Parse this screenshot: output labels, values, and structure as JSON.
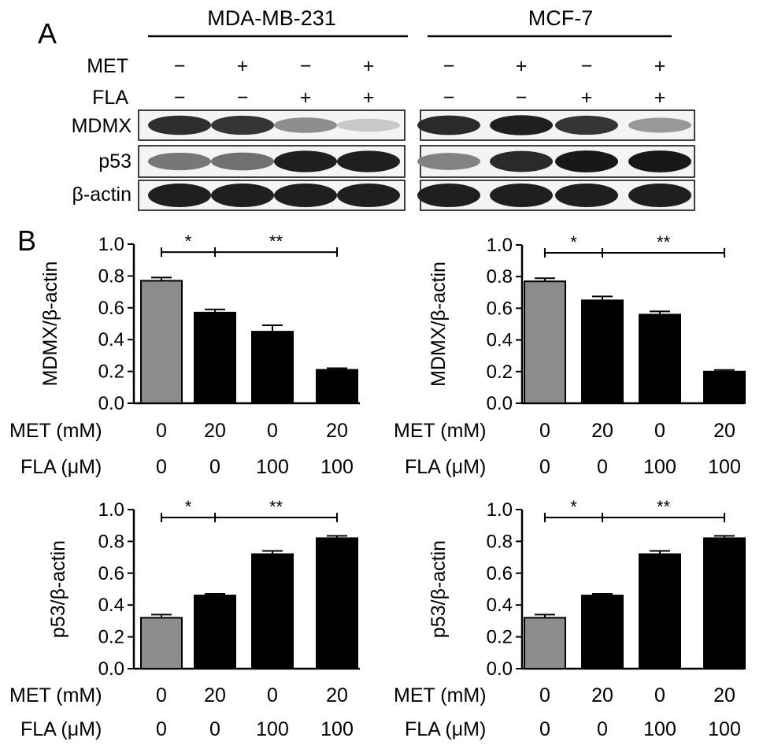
{
  "panel_a": {
    "letter": "A",
    "groups": [
      {
        "name": "MDA-MB-231",
        "met": [
          "−",
          "+",
          "−",
          "+"
        ],
        "fla": [
          "−",
          "−",
          "+",
          "+"
        ],
        "bands": {
          "MDMX": [
            0.88,
            0.85,
            0.45,
            0.18
          ],
          "p53": [
            0.55,
            0.58,
            0.95,
            0.95
          ],
          "beta_actin": [
            0.95,
            0.95,
            0.95,
            0.95
          ]
        }
      },
      {
        "name": "MCF-7",
        "met": [
          "−",
          "+",
          "−",
          "+"
        ],
        "fla": [
          "−",
          "−",
          "+",
          "+"
        ],
        "bands": {
          "MDMX": [
            0.9,
            0.95,
            0.85,
            0.4
          ],
          "p53": [
            0.5,
            0.9,
            0.98,
            0.98
          ],
          "beta_actin": [
            0.95,
            0.95,
            0.95,
            0.95
          ]
        }
      }
    ],
    "row_labels": {
      "met": "MET",
      "fla": "FLA"
    },
    "blot_labels": [
      "MDMX",
      "p53",
      "β-actin"
    ]
  },
  "panel_b": {
    "letter": "B"
  },
  "chart_data": [
    {
      "type": "bar",
      "ylabel": "MDMX/β-actin",
      "ylim": [
        0,
        1.0
      ],
      "yticks": [
        "0.0",
        "0.2",
        "0.4",
        "0.6",
        "0.8",
        "1.0"
      ],
      "conditions": {
        "row1_label": "MET (mM)",
        "row1": [
          "0",
          "20",
          "0",
          "20"
        ],
        "row2_label": "FLA (μM)",
        "row2": [
          "0",
          "0",
          "100",
          "100"
        ]
      },
      "values": [
        0.77,
        0.57,
        0.45,
        0.21
      ],
      "errors": [
        0.02,
        0.02,
        0.04,
        0.01
      ],
      "colors": [
        "#8c8c8c",
        "#000000",
        "#000000",
        "#000000"
      ],
      "significance": [
        {
          "from": 0,
          "to": 1,
          "label": "*"
        },
        {
          "from": 1,
          "to": 3,
          "label": "**"
        }
      ]
    },
    {
      "type": "bar",
      "ylabel": "MDMX/β-actin",
      "ylim": [
        0,
        1.0
      ],
      "yticks": [
        "0.0",
        "0.2",
        "0.4",
        "0.6",
        "0.8",
        "1.0"
      ],
      "conditions": {
        "row1_label": "MET (mM)",
        "row1": [
          "0",
          "20",
          "0",
          "20"
        ],
        "row2_label": "FLA (μM)",
        "row2": [
          "0",
          "0",
          "100",
          "100"
        ]
      },
      "values": [
        0.77,
        0.65,
        0.56,
        0.2
      ],
      "errors": [
        0.02,
        0.025,
        0.02,
        0.01
      ],
      "colors": [
        "#8c8c8c",
        "#000000",
        "#000000",
        "#000000"
      ],
      "significance": [
        {
          "from": 0,
          "to": 1,
          "label": "*"
        },
        {
          "from": 1,
          "to": 3,
          "label": "**"
        }
      ]
    },
    {
      "type": "bar",
      "ylabel": "p53/β-actin",
      "ylim": [
        0,
        1.0
      ],
      "yticks": [
        "0.0",
        "0.2",
        "0.4",
        "0.6",
        "0.8",
        "1.0"
      ],
      "conditions": {
        "row1_label": "MET (mM)",
        "row1": [
          "0",
          "20",
          "0",
          "20"
        ],
        "row2_label": "FLA (μM)",
        "row2": [
          "0",
          "0",
          "100",
          "100"
        ]
      },
      "values": [
        0.32,
        0.46,
        0.72,
        0.82
      ],
      "errors": [
        0.02,
        0.01,
        0.02,
        0.015
      ],
      "colors": [
        "#8c8c8c",
        "#000000",
        "#000000",
        "#000000"
      ],
      "significance": [
        {
          "from": 0,
          "to": 1,
          "label": "*"
        },
        {
          "from": 1,
          "to": 3,
          "label": "**"
        }
      ]
    },
    {
      "type": "bar",
      "ylabel": "p53/β-actin",
      "ylim": [
        0,
        1.0
      ],
      "yticks": [
        "0.0",
        "0.2",
        "0.4",
        "0.6",
        "0.8",
        "1.0"
      ],
      "conditions": {
        "row1_label": "MET (mM)",
        "row1": [
          "0",
          "20",
          "0",
          "20"
        ],
        "row2_label": "FLA (μM)",
        "row2": [
          "0",
          "0",
          "100",
          "100"
        ]
      },
      "values": [
        0.32,
        0.46,
        0.72,
        0.82
      ],
      "errors": [
        0.02,
        0.01,
        0.02,
        0.015
      ],
      "colors": [
        "#8c8c8c",
        "#000000",
        "#000000",
        "#000000"
      ],
      "significance": [
        {
          "from": 0,
          "to": 1,
          "label": "*"
        },
        {
          "from": 1,
          "to": 3,
          "label": "**"
        }
      ]
    }
  ]
}
